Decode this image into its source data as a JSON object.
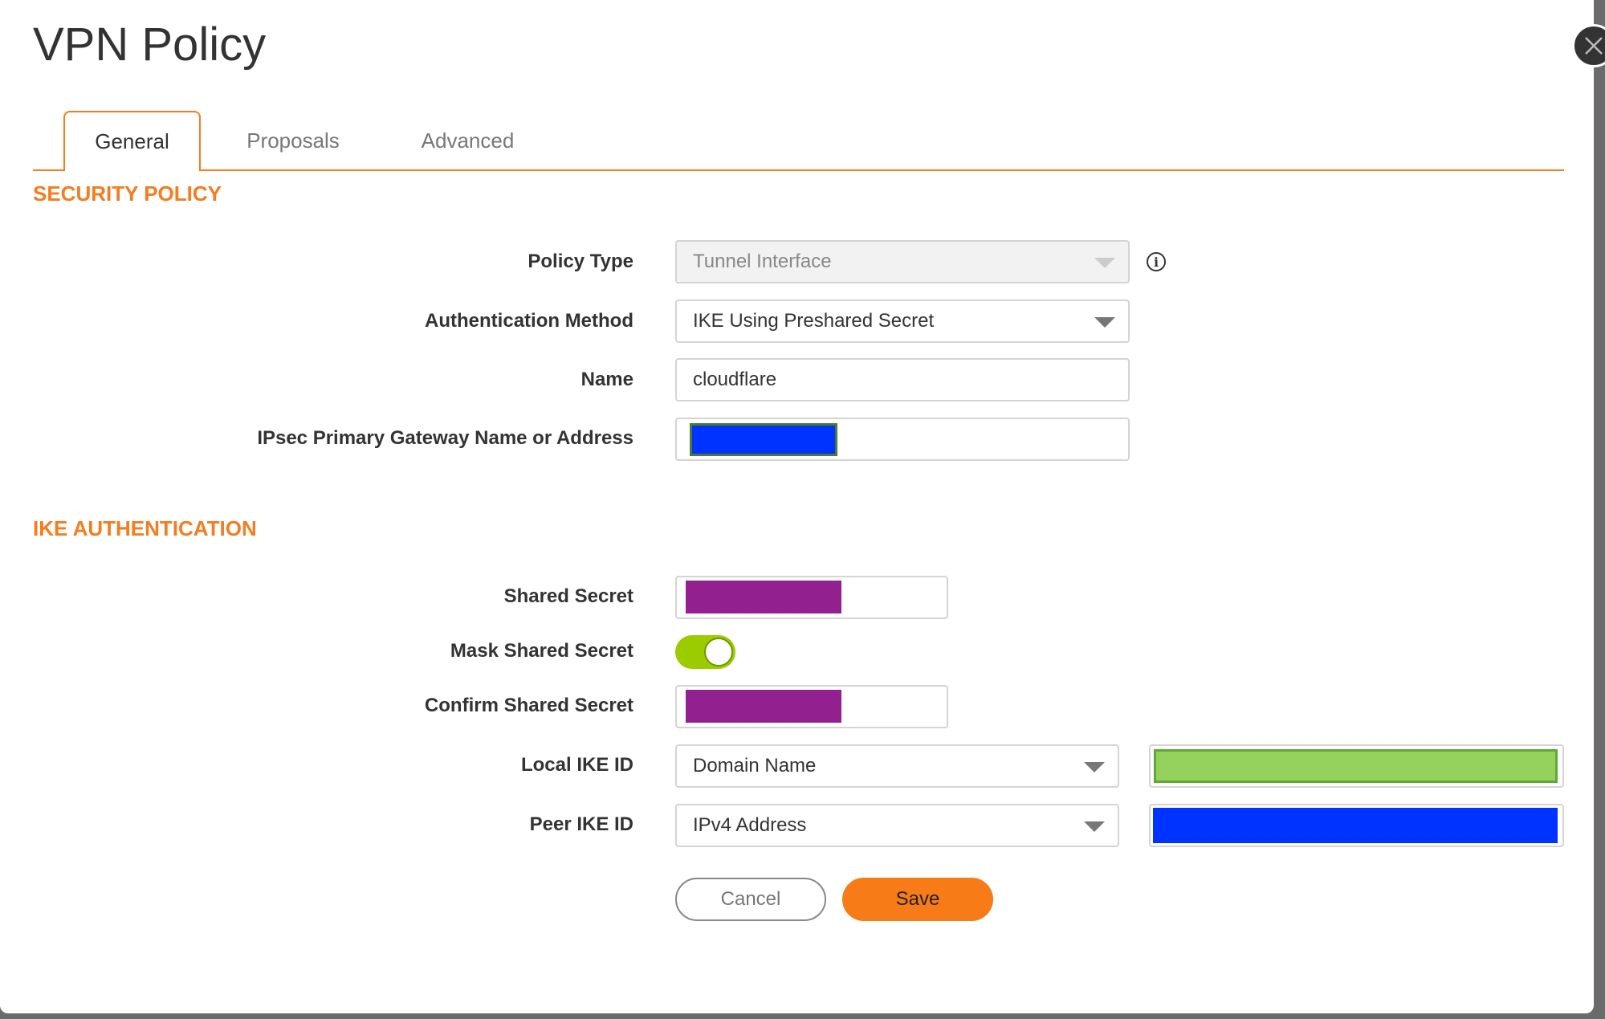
{
  "title": "VPN Policy",
  "tabs": [
    {
      "label": "General",
      "active": true
    },
    {
      "label": "Proposals"
    },
    {
      "label": "Advanced"
    }
  ],
  "sections": {
    "security_policy": "SECURITY POLICY",
    "ike_auth": "IKE AUTHENTICATION"
  },
  "fields": {
    "policy_type": {
      "label": "Policy Type",
      "value": "Tunnel Interface",
      "disabled": true
    },
    "auth_method": {
      "label": "Authentication Method",
      "value": "IKE Using Preshared Secret"
    },
    "name": {
      "label": "Name",
      "value": "cloudflare"
    },
    "gateway": {
      "label": "IPsec Primary Gateway Name or Address",
      "redacted_color": "#0033ff"
    },
    "shared_secret": {
      "label": "Shared Secret",
      "redacted_color": "#93208f"
    },
    "mask_shared_secret": {
      "label": "Mask Shared Secret",
      "on": true
    },
    "confirm_shared_secret": {
      "label": "Confirm Shared Secret",
      "redacted_color": "#93208f"
    },
    "local_ike_id": {
      "label": "Local IKE ID",
      "type": "Domain Name",
      "redacted_color": "#95d15d"
    },
    "peer_ike_id": {
      "label": "Peer IKE ID",
      "type": "IPv4 Address",
      "redacted_color": "#0033ff"
    }
  },
  "buttons": {
    "cancel": "Cancel",
    "save": "Save"
  },
  "colors": {
    "accent": "#f57c1f",
    "toggle_on": "#9bcc00"
  },
  "icons": {
    "close": "close-icon",
    "info": "info-icon",
    "caret": "chevron-down-icon"
  }
}
